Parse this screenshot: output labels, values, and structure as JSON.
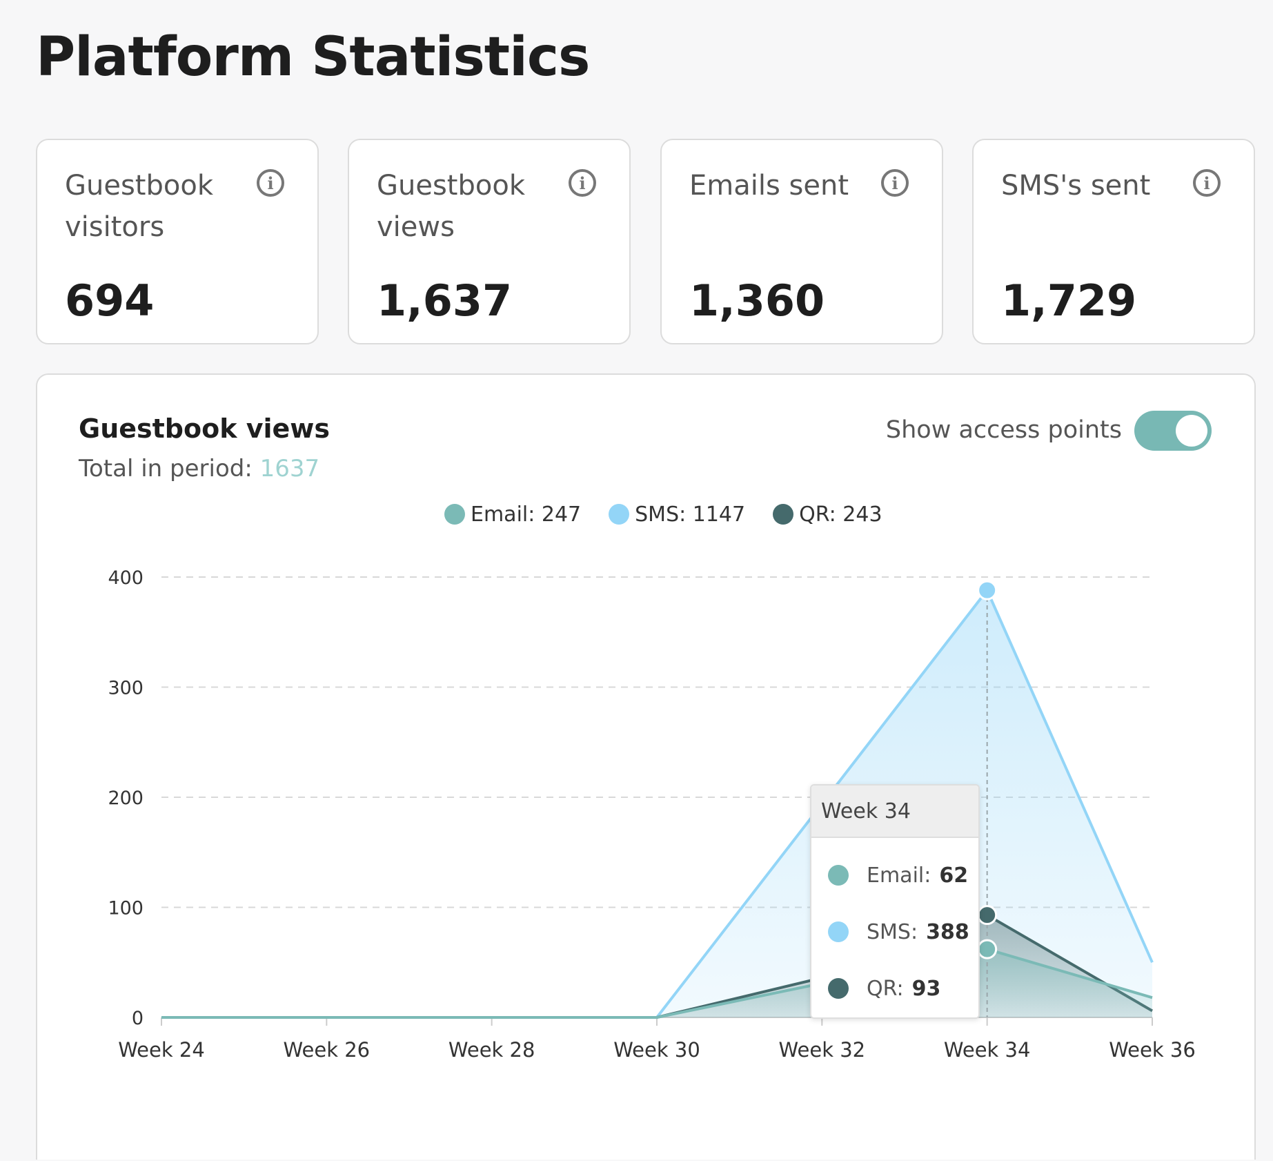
{
  "page": {
    "title": "Platform Statistics"
  },
  "stats": [
    {
      "label": "Guestbook visitors",
      "value": "694",
      "icon": "info-icon"
    },
    {
      "label": "Guestbook views",
      "value": "1,637",
      "icon": "info-icon"
    },
    {
      "label": "Emails sent",
      "value": "1,360",
      "icon": "info-icon"
    },
    {
      "label": "SMS's sent",
      "value": "1,729",
      "icon": "info-icon"
    }
  ],
  "chart_panel": {
    "title": "Guestbook views",
    "total_label": "Total in period: ",
    "total_value": "1637",
    "toggle_label": "Show access points",
    "toggle_on": true
  },
  "legend": [
    {
      "name": "Email",
      "text": "Email: 247",
      "color": "#7bbab6"
    },
    {
      "name": "SMS",
      "text": "SMS: 1147",
      "color": "#93d5f7"
    },
    {
      "name": "QR",
      "text": "QR: 243",
      "color": "#456a6c"
    }
  ],
  "tooltip": {
    "title": "Week 34",
    "rows": [
      {
        "label": "Email:",
        "value": "62",
        "color": "#7bbab6"
      },
      {
        "label": "SMS:",
        "value": "388",
        "color": "#93d5f7"
      },
      {
        "label": "QR:",
        "value": "93",
        "color": "#456a6c"
      }
    ]
  },
  "chart_data": {
    "type": "area",
    "title": "Guestbook views",
    "x": [
      "Week 24",
      "Week 26",
      "Week 28",
      "Week 30",
      "Week 32",
      "Week 34",
      "Week 36"
    ],
    "x_values": [
      24,
      26,
      28,
      30,
      32,
      34,
      36
    ],
    "yticks": [
      0,
      100,
      200,
      300,
      400
    ],
    "ylim": [
      0,
      400
    ],
    "grid": true,
    "highlight_x": 34,
    "series": [
      {
        "name": "SMS",
        "color": "#93d5f7",
        "values": [
          0,
          0,
          0,
          0,
          194,
          388,
          50
        ]
      },
      {
        "name": "QR",
        "color": "#456a6c",
        "values": [
          0,
          0,
          0,
          0,
          36,
          93,
          6
        ]
      },
      {
        "name": "Email",
        "color": "#7bbab6",
        "values": [
          0,
          0,
          0,
          0,
          31,
          62,
          18
        ]
      }
    ]
  }
}
